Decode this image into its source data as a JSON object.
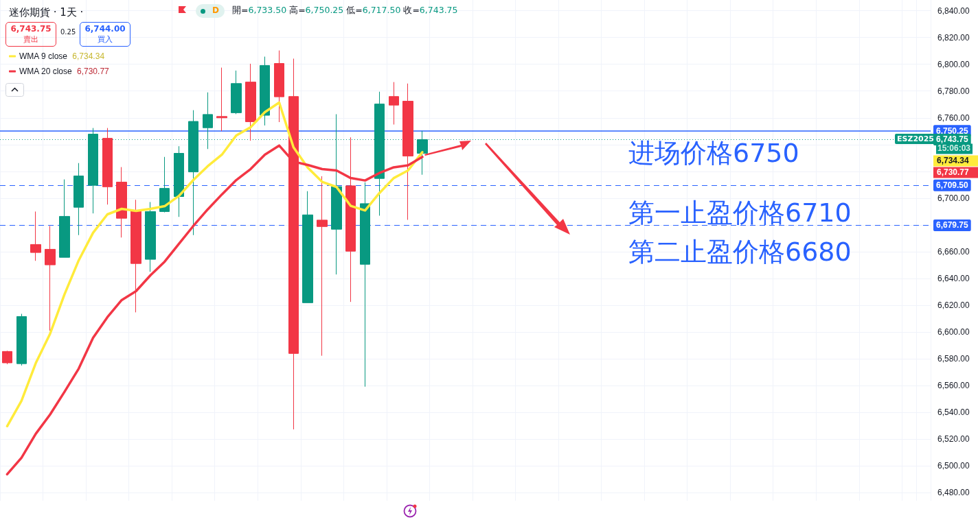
{
  "chart_data": {
    "type": "candlestick",
    "title": "迷你期貨 · 1天 ·",
    "categories": [
      null,
      null,
      null,
      null,
      null,
      null,
      null,
      null,
      null,
      null,
      null,
      null,
      null,
      null,
      null,
      null,
      null,
      null,
      null,
      null,
      null,
      null,
      null,
      null,
      null,
      null,
      null,
      null,
      null,
      null,
      null,
      null,
      null,
      null,
      null,
      null,
      null,
      null,
      null,
      null,
      null,
      null,
      null,
      null,
      null,
      null,
      null,
      null,
      null,
      null,
      null,
      null,
      null,
      null,
      null,
      null,
      null,
      null,
      null,
      null,
      null,
      null,
      null,
      null,
      null
    ],
    "ohlc": [
      [
        6585.5,
        6586,
        6576,
        6577
      ],
      [
        6576.4,
        6613.6,
        6575,
        6611.6
      ],
      [
        6665.4,
        6690,
        6653.2,
        6659.4
      ],
      [
        6661.8,
        6679.2,
        6601,
        6650.2
      ],
      [
        6655.8,
        6714,
        6655.8,
        6686.4
      ],
      [
        6693.2,
        6726.2,
        6672.4,
        6716.6
      ],
      [
        6709.6,
        6752.4,
        6688.6,
        6747.8
      ],
      [
        6744.7,
        6752.4,
        6695.2,
        6708.5
      ],
      [
        6712,
        6723.2,
        6670.6,
        6685
      ],
      [
        6690.5,
        6698.8,
        6614.7,
        6651.2
      ],
      [
        6654.3,
        6697.1,
        6645,
        6690
      ],
      [
        6690,
        6730.8,
        6689.4,
        6707.3
      ],
      [
        6701.2,
        6738.8,
        6686,
        6733.5
      ],
      [
        6719.6,
        6765.7,
        6672.4,
        6757.3
      ],
      [
        6752.6,
        6779,
        6736.7,
        6762.5
      ],
      [
        6761,
        6797.5,
        6750.1,
        6760
      ],
      [
        6763.8,
        6795.3,
        6762.8,
        6785.6
      ],
      [
        6786.7,
        6800.4,
        6742.9,
        6757.1
      ],
      [
        6761.9,
        6805.7,
        6754.3,
        6799.1
      ],
      [
        6800.6,
        6810.3,
        6756.8,
        6775.7
      ],
      [
        6775.9,
        6804.2,
        6527.3,
        6584
      ],
      [
        6621.9,
        6705.2,
        6621.9,
        6687.5
      ],
      [
        6683.6,
        6716.4,
        6582.3,
        6678.8
      ],
      [
        6676.8,
        6762.7,
        6643,
        6708.6
      ],
      [
        6709.2,
        6745.4,
        6622.5,
        6660.4
      ],
      [
        6650.6,
        6711.8,
        6559.2,
        6695.9
      ],
      [
        6714.7,
        6779.5,
        6686.9,
        6770.3
      ],
      [
        6775.9,
        6786.7,
        6755,
        6769.5
      ],
      [
        6772.4,
        6785.6,
        6683.8,
        6731.5
      ],
      [
        6733.5,
        6750.25,
        6717.5,
        6743.75
      ],
      null,
      null,
      null,
      null,
      null,
      null,
      null,
      null,
      null,
      null,
      null,
      null,
      null,
      null,
      null,
      null,
      null,
      null,
      null,
      null,
      null,
      null,
      null,
      null,
      null,
      null,
      null,
      null,
      null,
      null,
      null,
      null,
      null,
      null,
      null
    ],
    "series": [
      {
        "name": "WMA 9 close",
        "type": "line",
        "color": "#ffeb3b",
        "values": [
          6529.7,
          6548.6,
          6576.8,
          6598.8,
          6628,
          6653.6,
          6674.1,
          6687.9,
          6692,
          6690.5,
          6692,
          6694,
          6701.7,
          6713.5,
          6723.8,
          6732.5,
          6746.8,
          6752.9,
          6764.2,
          6771.4,
          6738,
          6722.7,
          6712.2,
          6708.4,
          6694.2,
          6690.8,
          6703.8,
          6715,
          6720.7,
          6734.34,
          null,
          null,
          null,
          null,
          null,
          null,
          null,
          null,
          null,
          null,
          null,
          null,
          null,
          null,
          null,
          null,
          null,
          null,
          null,
          null,
          null,
          null,
          null,
          null,
          null,
          null,
          null,
          null,
          null,
          null,
          null,
          null,
          null,
          null,
          null
        ]
      },
      {
        "name": "WMA 20 close",
        "type": "line",
        "color": "#f23645",
        "values": [
          6493.8,
          6506.1,
          6524,
          6538.4,
          6555.3,
          6572.7,
          6595.7,
          6611.1,
          6623.9,
          6630.5,
          6642.3,
          6652.6,
          6665.9,
          6679.2,
          6691.5,
          6702.8,
          6713.5,
          6721.7,
          6732.5,
          6739.3,
          6727.3,
          6724.8,
          6721.7,
          6720.7,
          6715,
          6713.2,
          6718.8,
          6723,
          6724.5,
          6730.77,
          null,
          null,
          null,
          null,
          null,
          null,
          null,
          null,
          null,
          null,
          null,
          null,
          null,
          null,
          null,
          null,
          null,
          null,
          null,
          null,
          null,
          null,
          null,
          null,
          null,
          null,
          null,
          null,
          null,
          null,
          null,
          null,
          null,
          null,
          null
        ]
      }
    ],
    "ylim": [
      6474,
      6848
    ],
    "yticks": [
      {
        "value": 6480,
        "label": "6,480.00"
      },
      {
        "value": 6500,
        "label": "6,500.00"
      },
      {
        "value": 6520,
        "label": "6,520.00"
      },
      {
        "value": 6540,
        "label": "6,540.00"
      },
      {
        "value": 6560,
        "label": "6,560.00"
      },
      {
        "value": 6580,
        "label": "6,580.00"
      },
      {
        "value": 6600,
        "label": "6,600.00"
      },
      {
        "value": 6620,
        "label": "6,620.00"
      },
      {
        "value": 6640,
        "label": "6,640.00"
      },
      {
        "value": 6660,
        "label": "6,660.00"
      },
      {
        "value": 6680,
        "label": null
      },
      {
        "value": 6700,
        "label": "6,700.00"
      },
      {
        "value": 6720,
        "label": null
      },
      {
        "value": 6740,
        "label": null
      },
      {
        "value": 6760,
        "label": "6,760.00"
      },
      {
        "value": 6780,
        "label": "6,780.00"
      },
      {
        "value": 6800,
        "label": "6,800.00"
      },
      {
        "value": 6820,
        "label": "6,820.00"
      },
      {
        "value": 6840,
        "label": "6,840.00"
      }
    ],
    "ref_lines": [
      {
        "axis": "y",
        "value": 6750.25,
        "label": "6,750.25",
        "color": "#2962ff",
        "line_style": "solid"
      },
      {
        "axis": "y",
        "value": 6743.75,
        "label": "6,743.75",
        "color": "#089981",
        "line_style": "dotted"
      },
      {
        "axis": "y",
        "value": 6709.5,
        "label": "6,709.50",
        "color": "#2962ff",
        "line_style": "dashed"
      },
      {
        "axis": "y",
        "value": 6679.75,
        "label": "6,679.75",
        "color": "#2962ff",
        "line_style": "dashed"
      }
    ],
    "annotations": [
      "进场价格6750",
      "第一止盈价格6710",
      "第二止盈价格6680",
      "開=6,733.50 高=6,750.25 低=6,717.50 收=6,743.75",
      "6,743.75",
      "賣出",
      "0.25",
      "6,744.00",
      "買入",
      "D",
      "ESZ2025",
      "15:06:03",
      "6,734.34",
      "6,730.77",
      "6,734.34",
      "6,730.77"
    ],
    "legend": "top left",
    "grid": true,
    "marker": "none",
    "line_style": "solid"
  }
}
